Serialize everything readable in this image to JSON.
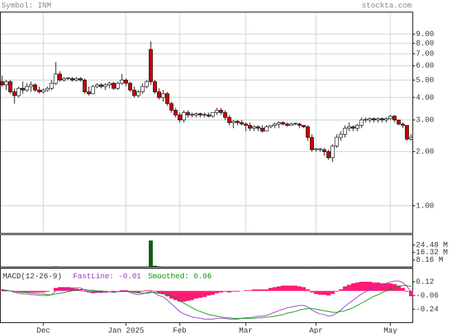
{
  "header": {
    "symbol": "Symbol: INM",
    "site": "stockta.com"
  },
  "chart_data": [
    {
      "type": "candlestick",
      "log_scale": true,
      "grid": true,
      "up_color": "#ffffff",
      "down_color": "#cc0000",
      "xlim": [
        -0.5,
        99.5
      ],
      "ylim": [
        0.7,
        12
      ],
      "xticks": [
        {
          "value": 10,
          "label": "Dec"
        },
        {
          "value": 30,
          "label": "Jan 2025"
        },
        {
          "value": 43,
          "label": "Feb"
        },
        {
          "value": 59,
          "label": "Mar"
        },
        {
          "value": 76,
          "label": "Apr"
        },
        {
          "value": 94,
          "label": "May"
        }
      ],
      "yticks": [
        {
          "value": 9,
          "label": "9.00"
        },
        {
          "value": 8,
          "label": "8.00"
        },
        {
          "value": 7,
          "label": "7.00"
        },
        {
          "value": 6,
          "label": "6.00"
        },
        {
          "value": 5,
          "label": "5.00"
        },
        {
          "value": 4,
          "label": "4.00"
        },
        {
          "value": 3,
          "label": "3.00"
        },
        {
          "value": 2,
          "label": "2.00"
        },
        {
          "value": 1,
          "label": "1.00"
        }
      ],
      "ohlc": [
        [
          4.9,
          5.3,
          4.6,
          4.7
        ],
        [
          4.7,
          5.0,
          4.4,
          4.9
        ],
        [
          4.9,
          5.0,
          4.2,
          4.3
        ],
        [
          4.3,
          4.5,
          3.7,
          4.1
        ],
        [
          4.1,
          4.6,
          4.0,
          4.5
        ],
        [
          4.5,
          4.9,
          4.2,
          4.4
        ],
        [
          4.4,
          4.8,
          4.3,
          4.6
        ],
        [
          4.6,
          4.9,
          4.3,
          4.7
        ],
        [
          4.7,
          4.8,
          4.3,
          4.4
        ],
        [
          4.4,
          4.6,
          4.2,
          4.3
        ],
        [
          4.3,
          4.5,
          4.2,
          4.4
        ],
        [
          4.4,
          4.6,
          4.3,
          4.5
        ],
        [
          4.5,
          5.0,
          4.4,
          4.8
        ],
        [
          4.8,
          6.3,
          4.7,
          5.4
        ],
        [
          5.4,
          5.6,
          4.9,
          5.0
        ],
        [
          5.0,
          5.2,
          4.9,
          5.1
        ],
        [
          5.1,
          5.2,
          5.0,
          5.15
        ],
        [
          5.1,
          5.2,
          4.9,
          5.0
        ],
        [
          5.0,
          5.2,
          4.9,
          5.1
        ],
        [
          5.1,
          5.2,
          4.9,
          5.0
        ],
        [
          5.0,
          5.1,
          4.2,
          4.3
        ],
        [
          4.3,
          4.6,
          4.1,
          4.2
        ],
        [
          4.2,
          4.7,
          4.2,
          4.6
        ],
        [
          4.6,
          4.8,
          4.5,
          4.7
        ],
        [
          4.7,
          4.8,
          4.5,
          4.6
        ],
        [
          4.6,
          4.8,
          4.4,
          4.7
        ],
        [
          4.7,
          4.9,
          4.5,
          4.8
        ],
        [
          4.8,
          4.9,
          4.4,
          4.5
        ],
        [
          4.5,
          4.9,
          4.4,
          4.8
        ],
        [
          4.8,
          5.4,
          4.7,
          5.0
        ],
        [
          5.0,
          5.1,
          4.6,
          4.8
        ],
        [
          4.8,
          4.9,
          4.3,
          4.4
        ],
        [
          4.4,
          4.6,
          4.0,
          4.1
        ],
        [
          4.1,
          4.4,
          4.0,
          4.3
        ],
        [
          4.3,
          4.8,
          4.2,
          4.6
        ],
        [
          4.6,
          5.0,
          4.5,
          4.9
        ],
        [
          7.4,
          8.2,
          4.7,
          4.9
        ],
        [
          4.9,
          5.0,
          4.2,
          4.3
        ],
        [
          4.3,
          4.5,
          3.9,
          4.0
        ],
        [
          4.0,
          4.4,
          3.8,
          4.2
        ],
        [
          4.2,
          4.3,
          3.6,
          3.7
        ],
        [
          3.7,
          3.8,
          3.3,
          3.4
        ],
        [
          3.4,
          3.5,
          3.1,
          3.2
        ],
        [
          3.2,
          3.3,
          2.9,
          3.0
        ],
        [
          3.0,
          3.4,
          2.9,
          3.3
        ],
        [
          3.3,
          3.4,
          3.1,
          3.2
        ],
        [
          3.2,
          3.3,
          3.1,
          3.22
        ],
        [
          3.2,
          3.3,
          3.1,
          3.25
        ],
        [
          3.25,
          3.3,
          3.1,
          3.2
        ],
        [
          3.2,
          3.3,
          3.1,
          3.22
        ],
        [
          3.2,
          3.3,
          3.1,
          3.15
        ],
        [
          3.15,
          3.3,
          3.1,
          3.3
        ],
        [
          3.3,
          3.5,
          3.2,
          3.4
        ],
        [
          3.4,
          3.5,
          3.2,
          3.3
        ],
        [
          3.3,
          3.4,
          3.0,
          3.1
        ],
        [
          3.1,
          3.2,
          2.8,
          2.9
        ],
        [
          2.9,
          3.0,
          2.7,
          2.95
        ],
        [
          2.95,
          3.0,
          2.8,
          2.9
        ],
        [
          2.9,
          3.0,
          2.8,
          2.85
        ],
        [
          2.85,
          2.9,
          2.6,
          2.8
        ],
        [
          2.8,
          2.9,
          2.6,
          2.7
        ],
        [
          2.7,
          2.8,
          2.6,
          2.75
        ],
        [
          2.75,
          2.8,
          2.6,
          2.7
        ],
        [
          2.7,
          2.8,
          2.55,
          2.6
        ],
        [
          2.6,
          2.8,
          2.6,
          2.75
        ],
        [
          2.75,
          2.8,
          2.7,
          2.8
        ],
        [
          2.8,
          2.9,
          2.7,
          2.85
        ],
        [
          2.85,
          2.95,
          2.7,
          2.9
        ],
        [
          2.9,
          2.95,
          2.8,
          2.85
        ],
        [
          2.85,
          2.9,
          2.75,
          2.8
        ],
        [
          2.8,
          2.9,
          2.8,
          2.85
        ],
        [
          2.85,
          2.9,
          2.8,
          2.87
        ],
        [
          2.85,
          2.9,
          2.7,
          2.8
        ],
        [
          2.8,
          2.8,
          2.7,
          2.75
        ],
        [
          2.75,
          2.8,
          2.3,
          2.4
        ],
        [
          2.4,
          2.5,
          2.0,
          2.05
        ],
        [
          2.05,
          2.1,
          2.0,
          2.07
        ],
        [
          2.05,
          2.1,
          2.0,
          2.07
        ],
        [
          2.05,
          2.1,
          1.9,
          2.0
        ],
        [
          2.0,
          2.05,
          1.8,
          1.85
        ],
        [
          1.85,
          2.2,
          1.75,
          2.15
        ],
        [
          2.15,
          2.5,
          2.1,
          2.4
        ],
        [
          2.4,
          2.6,
          2.3,
          2.5
        ],
        [
          2.5,
          2.8,
          2.4,
          2.7
        ],
        [
          2.7,
          2.9,
          2.6,
          2.75
        ],
        [
          2.75,
          2.8,
          2.6,
          2.7
        ],
        [
          2.7,
          2.85,
          2.6,
          2.8
        ],
        [
          2.8,
          3.1,
          2.7,
          3.0
        ],
        [
          3.0,
          3.1,
          2.9,
          3.02
        ],
        [
          3.0,
          3.1,
          2.9,
          3.05
        ],
        [
          3.05,
          3.1,
          2.9,
          3.0
        ],
        [
          3.0,
          3.1,
          2.9,
          3.05
        ],
        [
          3.05,
          3.1,
          2.9,
          3.0
        ],
        [
          3.0,
          3.1,
          2.9,
          3.05
        ],
        [
          3.05,
          3.2,
          3.0,
          3.15
        ],
        [
          3.15,
          3.2,
          2.9,
          3.0
        ],
        [
          3.0,
          3.0,
          2.8,
          2.85
        ],
        [
          2.85,
          2.9,
          2.7,
          2.8
        ],
        [
          2.8,
          2.8,
          2.3,
          2.35
        ],
        [
          2.35,
          2.5,
          2.3,
          2.4
        ]
      ]
    },
    {
      "type": "bar",
      "color": "#006600",
      "ylim": [
        0,
        36
      ],
      "yticks": [
        {
          "value": 24.48,
          "label": "24.48 M"
        },
        {
          "value": 16.32,
          "label": "16.32 M"
        },
        {
          "value": 8.16,
          "label": "8.16 M"
        }
      ],
      "values": [
        0.3,
        0.2,
        0.3,
        0.4,
        0.2,
        0.2,
        0.2,
        0.2,
        0.2,
        0.2,
        0.2,
        0.2,
        0.3,
        0.8,
        0.4,
        0.2,
        0.2,
        0.2,
        0.2,
        0.2,
        0.4,
        0.3,
        0.2,
        0.2,
        0.2,
        0.2,
        0.2,
        0.2,
        0.2,
        0.3,
        0.2,
        0.2,
        0.3,
        0.2,
        0.3,
        0.4,
        29,
        1.5,
        0.8,
        0.5,
        0.5,
        0.4,
        0.4,
        0.4,
        0.3,
        0.2,
        0.2,
        0.2,
        0.2,
        0.2,
        0.2,
        0.2,
        0.3,
        0.2,
        0.2,
        0.3,
        0.2,
        0.2,
        0.2,
        0.2,
        0.2,
        0.2,
        0.2,
        0.2,
        0.2,
        0.2,
        0.2,
        0.2,
        0.2,
        0.2,
        0.2,
        0.2,
        0.2,
        0.2,
        0.4,
        0.5,
        0.3,
        0.2,
        0.3,
        0.4,
        0.5,
        0.4,
        0.3,
        0.3,
        0.2,
        0.2,
        0.2,
        0.3,
        0.2,
        0.2,
        0.2,
        0.2,
        0.2,
        0.2,
        0.2,
        0.2,
        0.3,
        0.2,
        0.4,
        0.3
      ]
    },
    {
      "type": "macd",
      "title": "MACD(12-26-9)",
      "ylim": [
        -0.42,
        0.3
      ],
      "yticks": [
        0.12,
        -0.06,
        -0.24
      ],
      "histogram": {
        "color": "#ff1a75",
        "values": [
          0.02,
          0.01,
          0,
          -0.01,
          -0.02,
          -0.02,
          -0.02,
          -0.02,
          -0.02,
          -0.02,
          -0.02,
          -0.01,
          0,
          0.04,
          0.05,
          0.05,
          0.05,
          0.04,
          0.03,
          0.02,
          -0.01,
          -0.02,
          -0.03,
          -0.02,
          -0.02,
          -0.01,
          0,
          -0.01,
          0,
          0.01,
          0.01,
          -0.01,
          -0.02,
          -0.03,
          -0.01,
          0.01,
          0.01,
          -0.01,
          -0.03,
          -0.04,
          -0.07,
          -0.1,
          -0.12,
          -0.14,
          -0.14,
          -0.13,
          -0.12,
          -0.1,
          -0.09,
          -0.08,
          -0.06,
          -0.05,
          -0.03,
          -0.02,
          -0.01,
          -0.02,
          -0.01,
          -0.01,
          0,
          0.01,
          0.01,
          0.02,
          0.02,
          0.02,
          0.02,
          0.04,
          0.05,
          0.06,
          0.07,
          0.07,
          0.07,
          0.07,
          0.06,
          0.05,
          0.02,
          -0.02,
          -0.04,
          -0.05,
          -0.05,
          -0.06,
          -0.04,
          -0.01,
          0.02,
          0.06,
          0.08,
          0.1,
          0.11,
          0.12,
          0.12,
          0.12,
          0.11,
          0.11,
          0.1,
          0.1,
          0.1,
          0.09,
          0.07,
          0.04,
          -0.01,
          -0.07
        ]
      },
      "series": [
        {
          "name": "FastLine: -0.01",
          "color": "#9933cc",
          "values": [
            0.02,
            0.01,
            0,
            -0.02,
            -0.03,
            -0.04,
            -0.04,
            -0.05,
            -0.05,
            -0.06,
            -0.06,
            -0.06,
            -0.05,
            0.0,
            0.02,
            0.03,
            0.04,
            0.04,
            0.04,
            0.04,
            0.01,
            -0.01,
            -0.02,
            -0.02,
            -0.02,
            -0.02,
            -0.01,
            -0.02,
            -0.01,
            0.0,
            0.0,
            -0.02,
            -0.04,
            -0.05,
            -0.04,
            -0.02,
            -0.01,
            -0.03,
            -0.06,
            -0.08,
            -0.12,
            -0.17,
            -0.22,
            -0.27,
            -0.3,
            -0.32,
            -0.34,
            -0.35,
            -0.36,
            -0.37,
            -0.37,
            -0.37,
            -0.36,
            -0.36,
            -0.36,
            -0.37,
            -0.37,
            -0.37,
            -0.36,
            -0.35,
            -0.35,
            -0.34,
            -0.33,
            -0.33,
            -0.32,
            -0.3,
            -0.28,
            -0.26,
            -0.24,
            -0.22,
            -0.21,
            -0.2,
            -0.19,
            -0.19,
            -0.21,
            -0.25,
            -0.28,
            -0.3,
            -0.31,
            -0.33,
            -0.32,
            -0.29,
            -0.25,
            -0.2,
            -0.16,
            -0.12,
            -0.08,
            -0.04,
            -0.01,
            0.02,
            0.04,
            0.06,
            0.08,
            0.1,
            0.12,
            0.13,
            0.13,
            0.11,
            0.06,
            -0.01
          ]
        },
        {
          "name": "Smoothed: 0.06",
          "color": "#009900",
          "values": [
            0.0,
            0.0,
            0.0,
            -0.01,
            -0.01,
            -0.02,
            -0.02,
            -0.03,
            -0.03,
            -0.04,
            -0.04,
            -0.05,
            -0.05,
            -0.04,
            -0.03,
            -0.02,
            -0.01,
            0.0,
            0.01,
            0.02,
            0.02,
            0.01,
            0.01,
            0.0,
            0.0,
            -0.01,
            -0.01,
            -0.01,
            -0.01,
            -0.01,
            -0.01,
            -0.01,
            -0.02,
            -0.02,
            -0.03,
            -0.03,
            -0.02,
            -0.02,
            -0.03,
            -0.04,
            -0.05,
            -0.07,
            -0.1,
            -0.13,
            -0.16,
            -0.19,
            -0.22,
            -0.25,
            -0.27,
            -0.29,
            -0.31,
            -0.32,
            -0.33,
            -0.34,
            -0.35,
            -0.35,
            -0.36,
            -0.36,
            -0.36,
            -0.36,
            -0.36,
            -0.36,
            -0.35,
            -0.35,
            -0.34,
            -0.34,
            -0.33,
            -0.32,
            -0.31,
            -0.29,
            -0.28,
            -0.27,
            -0.25,
            -0.24,
            -0.23,
            -0.23,
            -0.24,
            -0.25,
            -0.26,
            -0.27,
            -0.28,
            -0.28,
            -0.27,
            -0.26,
            -0.24,
            -0.22,
            -0.19,
            -0.16,
            -0.13,
            -0.1,
            -0.07,
            -0.05,
            -0.02,
            0.0,
            0.02,
            0.04,
            0.06,
            0.07,
            0.07,
            0.06
          ]
        }
      ]
    }
  ]
}
